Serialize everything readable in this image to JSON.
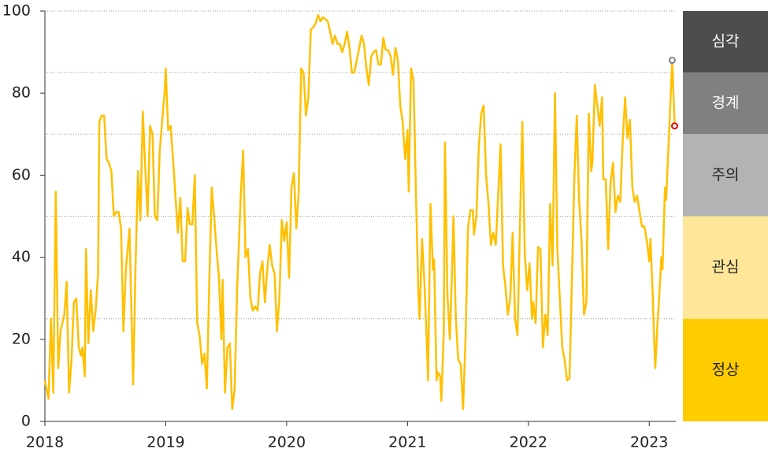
{
  "chart_data": {
    "type": "line",
    "color": "#ffc000",
    "xlim": [
      2018,
      2023.22
    ],
    "xticks": [
      2018,
      2019,
      2020,
      2021,
      2022,
      2023
    ],
    "ylim": [
      0,
      100
    ],
    "yticks": [
      0,
      20,
      40,
      60,
      80,
      100
    ],
    "x": [
      2018.0,
      2018.03,
      2018.05,
      2018.07,
      2018.09,
      2018.11,
      2018.13,
      2018.16,
      2018.18,
      2018.2,
      2018.22,
      2018.24,
      2018.26,
      2018.28,
      2018.3,
      2018.31,
      2018.33,
      2018.34,
      2018.36,
      2018.38,
      2018.4,
      2018.42,
      2018.44,
      2018.45,
      2018.47,
      2018.49,
      2018.51,
      2018.53,
      2018.55,
      2018.57,
      2018.59,
      2018.61,
      2018.63,
      2018.65,
      2018.67,
      2018.7,
      2018.73,
      2018.75,
      2018.77,
      2018.79,
      2018.81,
      2018.83,
      2018.85,
      2018.87,
      2018.89,
      2018.91,
      2018.93,
      2018.95,
      2018.97,
      2018.99,
      2019.0,
      2019.02,
      2019.04,
      2019.06,
      2019.08,
      2019.1,
      2019.12,
      2019.14,
      2019.16,
      2019.18,
      2019.2,
      2019.22,
      2019.24,
      2019.26,
      2019.28,
      2019.3,
      2019.32,
      2019.34,
      2019.36,
      2019.38,
      2019.4,
      2019.42,
      2019.44,
      2019.46,
      2019.47,
      2019.49,
      2019.51,
      2019.53,
      2019.55,
      2019.57,
      2019.59,
      2019.62,
      2019.64,
      2019.66,
      2019.68,
      2019.7,
      2019.72,
      2019.74,
      2019.76,
      2019.78,
      2019.8,
      2019.82,
      2019.84,
      2019.86,
      2019.88,
      2019.9,
      2019.92,
      2019.94,
      2019.96,
      2019.98,
      2020.0,
      2020.02,
      2020.04,
      2020.06,
      2020.08,
      2020.1,
      2020.12,
      2020.14,
      2020.16,
      2020.18,
      2020.2,
      2020.22,
      2020.24,
      2020.26,
      2020.28,
      2020.3,
      2020.32,
      2020.34,
      2020.36,
      2020.38,
      2020.4,
      2020.42,
      2020.44,
      2020.46,
      2020.48,
      2020.5,
      2020.52,
      2020.54,
      2020.56,
      2020.58,
      2020.6,
      2020.62,
      2020.64,
      2020.66,
      2020.68,
      2020.7,
      2020.72,
      2020.74,
      2020.76,
      2020.78,
      2020.8,
      2020.82,
      2020.84,
      2020.86,
      2020.88,
      2020.9,
      2020.92,
      2020.94,
      2020.96,
      2020.98,
      2021.0,
      2021.01,
      2021.03,
      2021.05,
      2021.07,
      2021.09,
      2021.1,
      2021.12,
      2021.14,
      2021.16,
      2021.17,
      2021.19,
      2021.21,
      2021.22,
      2021.24,
      2021.25,
      2021.27,
      2021.28,
      2021.3,
      2021.31,
      2021.33,
      2021.35,
      2021.37,
      2021.38,
      2021.4,
      2021.42,
      2021.44,
      2021.46,
      2021.48,
      2021.5,
      2021.52,
      2021.54,
      2021.55,
      2021.57,
      2021.59,
      2021.61,
      2021.63,
      2021.65,
      2021.67,
      2021.69,
      2021.71,
      2021.73,
      2021.75,
      2021.77,
      2021.79,
      2021.81,
      2021.83,
      2021.85,
      2021.87,
      2021.89,
      2021.91,
      2021.93,
      2021.95,
      2021.97,
      2021.99,
      2022.01,
      2022.03,
      2022.04,
      2022.06,
      2022.08,
      2022.1,
      2022.12,
      2022.14,
      2022.16,
      2022.18,
      2022.2,
      2022.22,
      2022.24,
      2022.26,
      2022.28,
      2022.3,
      2022.32,
      2022.34,
      2022.36,
      2022.38,
      2022.4,
      2022.42,
      2022.44,
      2022.46,
      2022.48,
      2022.5,
      2022.52,
      2022.53,
      2022.55,
      2022.57,
      2022.59,
      2022.61,
      2022.62,
      2022.64,
      2022.66,
      2022.68,
      2022.7,
      2022.72,
      2022.74,
      2022.76,
      2022.78,
      2022.8,
      2022.82,
      2022.84,
      2022.86,
      2022.88,
      2022.9,
      2022.92,
      2022.94,
      2022.96,
      2022.98,
      2023.0,
      2023.01,
      2023.03,
      2023.04,
      2023.05,
      2023.07,
      2023.08,
      2023.1,
      2023.11,
      2023.13,
      2023.14,
      2023.19,
      2023.21
    ],
    "values": [
      10,
      5.5,
      25,
      7,
      56,
      13,
      22,
      26,
      34,
      7,
      15,
      29,
      30,
      18,
      16,
      18,
      11,
      42,
      19,
      32,
      22,
      27,
      36,
      73,
      74.5,
      74.5,
      64,
      63,
      61,
      50,
      51,
      51,
      47,
      22,
      37,
      47,
      9,
      38,
      61,
      49,
      75.5,
      62,
      50,
      72,
      70,
      50,
      49,
      66,
      73,
      80,
      86,
      71,
      72,
      64,
      55,
      46,
      54.5,
      39,
      39,
      52,
      48,
      48,
      60,
      24,
      21,
      14,
      16.5,
      8,
      34,
      57,
      50,
      42,
      35,
      20,
      34.5,
      7,
      18,
      19,
      3,
      8,
      32,
      55,
      66,
      40,
      42,
      30,
      27,
      28,
      27,
      36,
      39,
      29,
      37,
      43,
      38,
      36,
      22,
      30,
      49,
      44,
      48.5,
      35,
      57,
      60.5,
      47,
      56,
      86,
      85,
      74.5,
      79,
      95.5,
      96,
      97,
      99,
      97.5,
      98.5,
      98,
      97.5,
      95,
      92,
      94,
      92,
      92,
      90,
      92,
      95,
      91,
      85,
      85,
      88,
      91,
      94,
      92,
      86,
      82,
      89,
      90,
      90.5,
      87,
      87,
      93.5,
      90.5,
      90.5,
      89,
      84.5,
      91,
      88,
      77,
      73,
      64,
      71,
      56,
      86,
      83,
      55,
      31,
      25,
      44.5,
      34,
      19,
      10,
      53,
      37,
      39.5,
      10,
      12,
      11,
      5,
      22,
      68,
      31,
      20,
      38,
      50,
      25,
      15,
      14,
      3,
      20,
      47,
      51.5,
      51.5,
      45.5,
      50,
      67,
      75,
      77,
      60,
      53,
      43,
      46,
      43,
      55,
      67.5,
      38,
      33,
      26,
      30,
      46,
      25,
      21,
      48,
      73,
      41,
      32,
      38.5,
      25,
      29,
      24,
      42.5,
      42,
      18,
      26,
      21,
      53,
      38,
      80,
      42,
      30,
      18,
      15,
      10,
      10.5,
      34,
      59,
      74.5,
      54,
      44,
      26,
      29,
      75,
      61,
      63,
      82,
      77,
      72,
      79,
      59,
      59,
      42,
      58,
      63,
      51,
      55,
      53.5,
      68,
      79,
      69,
      73.5,
      57,
      53.5,
      55,
      51,
      47.5,
      47.5,
      44,
      39,
      44.5,
      30,
      20,
      13,
      25,
      29,
      40,
      37,
      57,
      54,
      88,
      72
    ],
    "markers": [
      {
        "x": 2023.19,
        "y": 88,
        "color": "#808080"
      },
      {
        "x": 2023.21,
        "y": 72,
        "color": "#e00000"
      }
    ],
    "bands": [
      {
        "label": "심각",
        "from": 85,
        "to": 100,
        "color": "#4d4d4d",
        "text_color": "#ffffff"
      },
      {
        "label": "경계",
        "from": 70,
        "to": 85,
        "color": "#808080",
        "text_color": "#ffffff"
      },
      {
        "label": "주의",
        "from": 50,
        "to": 70,
        "color": "#b3b3b3",
        "text_color": "#222222"
      },
      {
        "label": "관심",
        "from": 25,
        "to": 50,
        "color": "#ffe699",
        "text_color": "#222222"
      },
      {
        "label": "정상",
        "from": 0,
        "to": 25,
        "color": "#ffcc00",
        "text_color": "#222222"
      }
    ]
  }
}
